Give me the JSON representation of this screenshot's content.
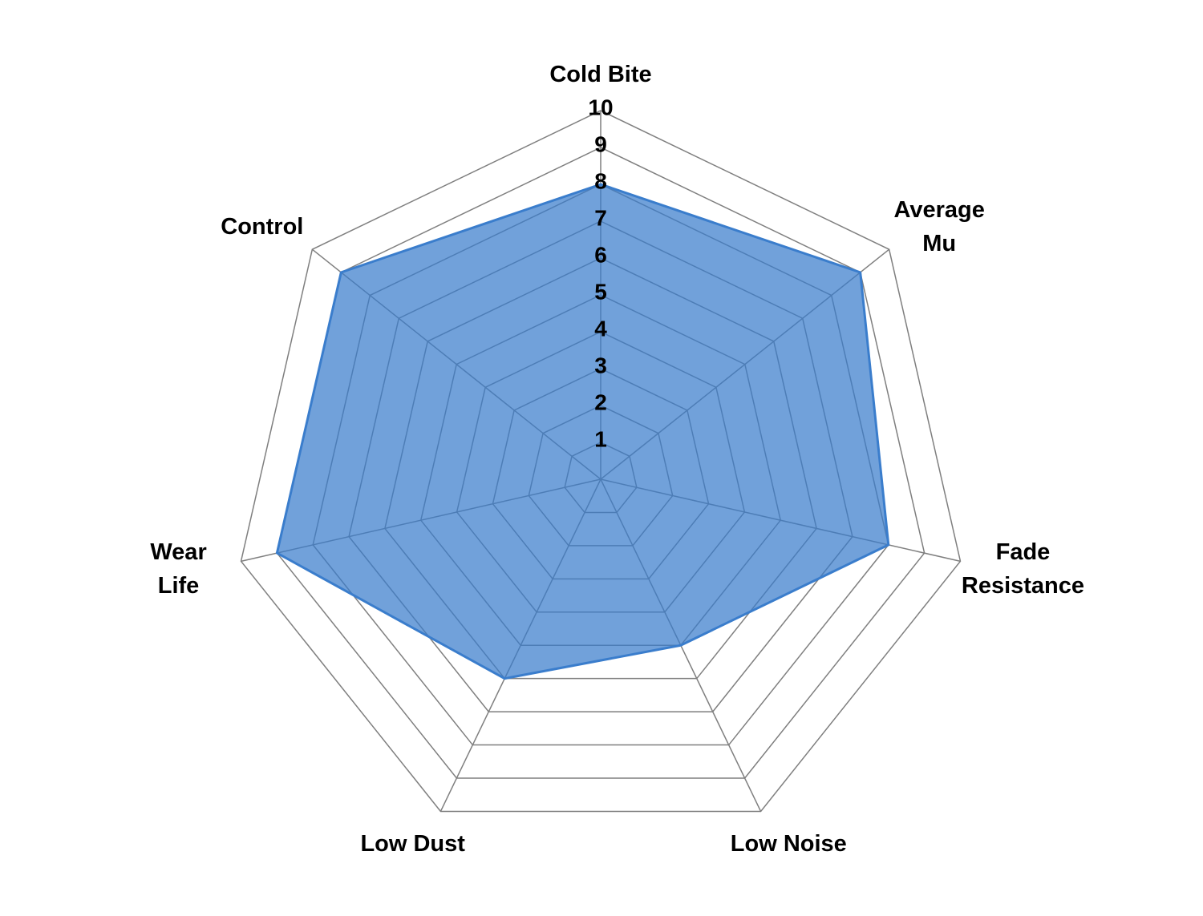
{
  "chart_data": {
    "type": "radar",
    "categories": [
      "Cold Bite",
      "Average\nMu",
      "Fade\nResistance",
      "Low Noise",
      "Low Dust",
      "Wear\nLife",
      "Control"
    ],
    "series": [
      {
        "color": "#3a7dcc",
        "values": [
          8,
          9,
          8,
          5,
          6,
          9,
          9
        ]
      }
    ],
    "rlim": [
      0,
      10
    ],
    "rticks": [
      1,
      2,
      3,
      4,
      5,
      6,
      7,
      8,
      9,
      10
    ],
    "grid": true
  }
}
